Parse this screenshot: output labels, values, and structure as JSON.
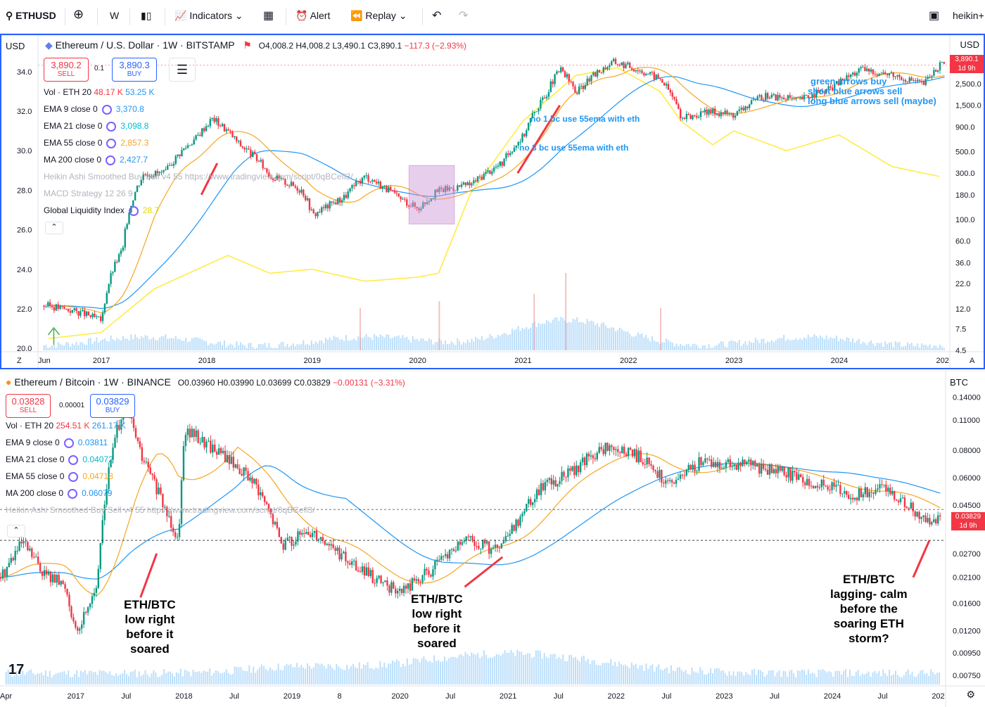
{
  "toolbar": {
    "symbol": "ETHUSD",
    "interval": "W",
    "indicators": "Indicators",
    "alert": "Alert",
    "replay": "Replay",
    "right_label": "heikin+"
  },
  "pane1": {
    "title": "Ethereum / U.S. Dollar · 1W · BITSTAMP",
    "ohlc": {
      "o": "O4,008.2",
      "h": "H4,008.2",
      "l": "L3,490.1",
      "c": "C3,890.1",
      "chg": "−117.3 (−2.93%)"
    },
    "sell_price": "3,890.2",
    "sell_label": "SELL",
    "spread": "0.1",
    "buy_price": "3,890.3",
    "buy_label": "BUY",
    "currency": "USD",
    "left_currency": "USD",
    "indicators": [
      {
        "label": "Vol · ETH 20",
        "v1": "48.17 K",
        "v2": "53.25 K",
        "c1": "#f23645",
        "c2": "#2196f3"
      },
      {
        "label": "EMA 9 close 0",
        "v1": "3,370.8",
        "c1": "#2196f3"
      },
      {
        "label": "EMA 21 close 0",
        "v1": "3,098.8",
        "c1": "#00bcd4"
      },
      {
        "label": "EMA 55 close 0",
        "v1": "2,857.3",
        "c1": "#f5a623"
      },
      {
        "label": "MA 200 close 0",
        "v1": "2,427.7",
        "c1": "#2196f3"
      },
      {
        "label": "Heikin Ashi Smoothed Buy Sell v4 55 https://www.tradingview.com/script/0qBCefl3/",
        "c1": "#b2b5be"
      },
      {
        "label": "MACD Strategy 12 26 9",
        "c1": "#b2b5be"
      },
      {
        "label": "Global Liquidity Index",
        "v1": "28.7",
        "c1": "#e6d700"
      }
    ],
    "price_tag": "3,890.1",
    "price_tag_time": "1d 9h",
    "notes": [
      "no 1 bc use 55ema with eth",
      "no 3 bc use 55ema with eth",
      "green arrows buy",
      "short blue arrows sell",
      "long blue arrows sell (maybe)"
    ]
  },
  "pane2": {
    "title": "Ethereum / Bitcoin · 1W · BINANCE",
    "ohlc": {
      "o": "O0.03960",
      "h": "H0.03990",
      "l": "L0.03699",
      "c": "C0.03829",
      "chg": "−0.00131 (−3.31%)"
    },
    "sell_price": "0.03828",
    "sell_label": "SELL",
    "spread": "0.00001",
    "buy_price": "0.03829",
    "buy_label": "BUY",
    "currency": "BTC",
    "indicators": [
      {
        "label": "Vol · ETH 20",
        "v1": "254.51 K",
        "v2": "261.17 K",
        "c1": "#f23645",
        "c2": "#2196f3"
      },
      {
        "label": "EMA 9 close 0",
        "v1": "0.03811",
        "c1": "#2196f3"
      },
      {
        "label": "EMA 21 close 0",
        "v1": "0.04072",
        "c1": "#00bcd4"
      },
      {
        "label": "EMA 55 close 0",
        "v1": "0.04718",
        "c1": "#f5a623"
      },
      {
        "label": "MA 200 close 0",
        "v1": "0.06079",
        "c1": "#2196f3"
      },
      {
        "label": "Heikin Ashi Smoothed Buy Sell v4 55 https://www.tradingview.com/script/0qBCefl3/",
        "c1": "#b2b5be"
      }
    ],
    "price_tag": "0.03829",
    "price_tag_time": "1d 9h",
    "annotations": [
      "ETH/BTC\nlow right\nbefore it\nsoared",
      "ETH/BTC\nlow right\nbefore it\nsoared",
      "ETH/BTC\nlagging- calm\nbefore the\nsoaring ETH\nstorm?"
    ]
  },
  "chart_data": [
    {
      "type": "line",
      "title": "Ethereum / U.S. Dollar · 1W · BITSTAMP",
      "x_ticks": [
        "Jun",
        "2017",
        "2018",
        "2019",
        "2020",
        "2021",
        "2022",
        "2023",
        "2024",
        "202"
      ],
      "y_ticks_right": [
        "3,890.1",
        "2,500.0",
        "1,500.0",
        "900.0",
        "500.0",
        "300.0",
        "180.0",
        "100.0",
        "60.0",
        "36.0",
        "22.0",
        "12.0",
        "7.5",
        "4.5"
      ],
      "y_ticks_left": [
        "34.0",
        "32.0",
        "30.0",
        "28.0",
        "26.0",
        "24.0",
        "22.0",
        "20.0"
      ],
      "yscale": "log",
      "series": [
        {
          "name": "ETHUSD",
          "x": [
            2016.5,
            2016.8,
            2017.0,
            2017.2,
            2017.4,
            2017.6,
            2017.9,
            2018.05,
            2018.3,
            2018.6,
            2018.9,
            2019.0,
            2019.3,
            2019.5,
            2019.8,
            2020.0,
            2020.2,
            2020.5,
            2020.8,
            2021.0,
            2021.2,
            2021.35,
            2021.5,
            2021.85,
            2022.0,
            2022.3,
            2022.5,
            2022.8,
            2023.0,
            2023.3,
            2023.6,
            2023.9,
            2024.2,
            2024.5,
            2024.8,
            2024.95
          ],
          "values": [
            13,
            11,
            9,
            50,
            300,
            300,
            700,
            1100,
            600,
            280,
            200,
            110,
            170,
            280,
            170,
            130,
            200,
            230,
            380,
            730,
            1800,
            3500,
            2000,
            4200,
            3800,
            2800,
            1100,
            1300,
            1200,
            1900,
            1700,
            2200,
            3500,
            3100,
            2500,
            3890
          ]
        },
        {
          "name": "Global Liquidity Index",
          "x": [
            2016.5,
            2017.0,
            2017.5,
            2018.2,
            2018.6,
            2019.0,
            2019.5,
            2020.0,
            2020.2,
            2020.5,
            2021.0,
            2021.5,
            2021.9,
            2022.3,
            2022.5,
            2022.8,
            2023.0,
            2023.5,
            2024.0,
            2024.5,
            2024.95
          ],
          "values": [
            20.5,
            20.8,
            23.0,
            24.7,
            23.8,
            24.0,
            23.4,
            23.6,
            23.8,
            27.8,
            31.5,
            33.8,
            34.2,
            33.0,
            31.5,
            30.3,
            31.0,
            30.0,
            30.8,
            29.2,
            28.7
          ]
        }
      ]
    },
    {
      "type": "line",
      "title": "Ethereum / Bitcoin · 1W · BINANCE",
      "x_ticks": [
        "Apr",
        "2017",
        "Jul",
        "2018",
        "Jul",
        "2019",
        "8",
        "2020",
        "Jul",
        "2021",
        "Jul",
        "2022",
        "Jul",
        "2023",
        "Jul",
        "2024",
        "Jul",
        "202"
      ],
      "y_ticks_right": [
        "0.14000",
        "0.11000",
        "0.08000",
        "0.06000",
        "0.04500",
        "0.03829",
        "0.02700",
        "0.02100",
        "0.01600",
        "0.01200",
        "0.00950",
        "0.00750"
      ],
      "yscale": "log",
      "series": [
        {
          "name": "ETHBTC",
          "x": [
            2016.3,
            2016.5,
            2016.7,
            2016.9,
            2017.0,
            2017.2,
            2017.45,
            2017.6,
            2017.8,
            2017.95,
            2018.0,
            2018.3,
            2018.6,
            2018.9,
            2019.2,
            2019.5,
            2019.8,
            2020.0,
            2020.3,
            2020.6,
            2020.9,
            2021.0,
            2021.3,
            2021.5,
            2021.9,
            2022.2,
            2022.5,
            2022.8,
            2023.0,
            2023.5,
            2023.9,
            2024.2,
            2024.5,
            2024.8,
            2024.95
          ],
          "values": [
            0.021,
            0.03,
            0.022,
            0.019,
            0.011,
            0.02,
            0.13,
            0.075,
            0.045,
            0.031,
            0.1,
            0.08,
            0.06,
            0.03,
            0.034,
            0.025,
            0.02,
            0.018,
            0.023,
            0.031,
            0.028,
            0.032,
            0.055,
            0.06,
            0.082,
            0.075,
            0.055,
            0.072,
            0.07,
            0.065,
            0.055,
            0.05,
            0.054,
            0.04,
            0.03829
          ]
        }
      ]
    }
  ],
  "colors": {
    "accent": "#2962ff",
    "up": "#089981",
    "down": "#f23645",
    "liquidity": "#ffeb3b",
    "ema55": "#f5a623",
    "ma200": "#2196f3",
    "volume": "#64b5f6"
  },
  "icons": [
    "search-icon",
    "plus-icon",
    "candles-icon",
    "indicators-icon",
    "layout-icon",
    "alert-icon",
    "replay-icon",
    "undo-icon",
    "redo-icon",
    "tradingview-logo"
  ]
}
